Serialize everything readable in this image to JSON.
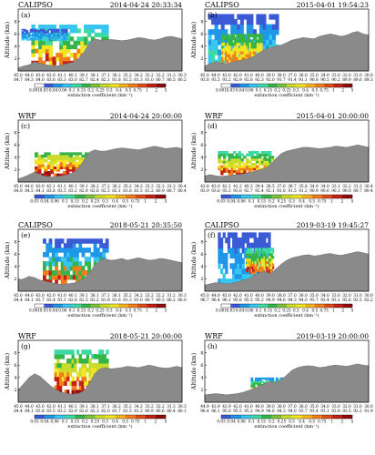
{
  "figure": {
    "y_axis_label": "Altitude (km)",
    "y_ticks": [
      "2",
      "4",
      "6",
      "8"
    ],
    "colorbar_label": "extinction coefficient (km⁻¹)",
    "colorbar_colors": [
      "#ffffff",
      "#3b5bd6",
      "#1f97e8",
      "#37c6f0",
      "#3fd9a5",
      "#35b44a",
      "#7fc33a",
      "#c9dc2e",
      "#f2e521",
      "#f6b51c",
      "#f07f1a",
      "#e04c17",
      "#c32114",
      "#8f0d0d"
    ]
  },
  "panels": [
    {
      "id": "a",
      "letter": "(a)",
      "source": "CALIPSO",
      "time": "2014-04-24 20:33:34",
      "colorbar_ticks": [
        "0.001",
        "0.03",
        "0.04",
        "0.06",
        "0.1",
        "0.15",
        "0.2",
        "0.25",
        "0.3",
        "0.4",
        "0.5",
        "0.75",
        "1",
        "2",
        "5"
      ],
      "lat_row": [
        "45.0",
        "44.0",
        "43.0",
        "42.0",
        "41.1",
        "40.1",
        "39.1",
        "38.1",
        "37.1",
        "36.2",
        "35.2",
        "34.2",
        "33.2",
        "32.2",
        "31.3",
        "30.3"
      ],
      "lon_row": [
        "84.7",
        "84.3",
        "84.0",
        "83.6",
        "83.3",
        "83.0",
        "82.7",
        "82.4",
        "82.1",
        "81.8",
        "81.5",
        "81.3",
        "81.0",
        "80.7",
        "80.5",
        "80.2"
      ],
      "chart_data": {
        "type": "heatmap",
        "xlabel": "",
        "ylabel": "Altitude (km)",
        "ylim": [
          0,
          10
        ],
        "terrain_km": [
          0.5,
          0.8,
          1.0,
          1.5,
          1.2,
          1.0,
          0.9,
          0.8,
          1.0,
          1.2,
          1.4,
          2.0,
          3.0,
          4.5,
          5.2,
          5.0,
          5.0,
          5.1,
          5.0,
          4.9,
          5.0,
          5.2,
          5.4,
          5.3,
          5.1,
          5.0,
          5.2,
          5.5,
          5.6,
          5.4,
          5.2
        ]
      }
    },
    {
      "id": "b",
      "letter": "(b)",
      "source": "CALIPSO",
      "time": "2015-04-01 19:54:23",
      "colorbar_ticks": [
        "0.001",
        "0.03",
        "0.04",
        "0.06",
        "0.1",
        "0.15",
        "0.2",
        "0.25",
        "0.3",
        "0.4",
        "0.5",
        "0.75",
        "1",
        "2",
        "5"
      ],
      "lat_row": [
        "45.0",
        "44.0",
        "43.0",
        "42.0",
        "41.0",
        "40.0",
        "39.0",
        "38.0",
        "37.0",
        "36.0",
        "35.0",
        "34.0",
        "33.0",
        "32.0",
        "31.0",
        "30.0"
      ],
      "lon_row": [
        "93.8",
        "93.5",
        "93.2",
        "92.9",
        "92.6",
        "92.3",
        "92.0",
        "91.7",
        "91.4",
        "91.1",
        "90.8",
        "90.5",
        "90.2",
        "89.9",
        "89.6",
        "89.3"
      ],
      "chart_data": {
        "type": "heatmap",
        "xlabel": "",
        "ylabel": "Altitude (km)",
        "ylim": [
          0,
          10
        ],
        "terrain_km": [
          0.8,
          1.2,
          1.5,
          1.3,
          1.2,
          1.4,
          1.6,
          1.8,
          2.0,
          2.4,
          3.0,
          3.5,
          3.8,
          4.0,
          4.2,
          4.6,
          5.0,
          5.2,
          5.4,
          5.3,
          5.2,
          5.6,
          5.8,
          6.0,
          5.8,
          5.6,
          5.8,
          6.2,
          6.4,
          6.0,
          5.8
        ]
      }
    },
    {
      "id": "c",
      "letter": "(c)",
      "source": "WRF",
      "time": "2014-04-24 20:00:00",
      "colorbar_ticks": [
        "0.03",
        "0.04",
        "0.06",
        "0.1",
        "0.15",
        "0.2",
        "0.25",
        "0.3",
        "0.4",
        "0.5",
        "0.75",
        "1",
        "2",
        "5"
      ],
      "lat_row": [
        "45.0",
        "44.0",
        "43.0",
        "42.1",
        "41.1",
        "40.1",
        "39.1",
        "38.2",
        "37.2",
        "36.2",
        "35.2",
        "34.3",
        "33.3",
        "32.3",
        "31.3",
        "30.4"
      ],
      "lon_row": [
        "84.8",
        "84.5",
        "84.1",
        "83.8",
        "83.5",
        "83.2",
        "82.9",
        "82.6",
        "82.3",
        "82.1",
        "81.8",
        "81.5",
        "81.2",
        "80.9",
        "80.7",
        "80.4"
      ],
      "chart_data": {
        "type": "heatmap",
        "xlabel": "",
        "ylabel": "Altitude (km)",
        "ylim": [
          0,
          10
        ],
        "terrain_km": [
          0.5,
          0.8,
          1.2,
          1.6,
          1.2,
          0.9,
          0.8,
          0.9,
          1.0,
          1.2,
          1.5,
          2.2,
          3.5,
          4.8,
          5.2,
          5.0,
          5.0,
          5.2,
          5.4,
          5.5,
          5.4,
          5.3,
          5.2,
          5.4,
          5.6,
          5.8,
          5.6,
          5.4,
          5.5,
          5.6,
          5.4
        ]
      }
    },
    {
      "id": "d",
      "letter": "(d)",
      "source": "WRF",
      "time": "2015-04-01 20:00:00",
      "colorbar_ticks": [
        "0.03",
        "0.04",
        "0.06",
        "0.1",
        "0.15",
        "0.2",
        "0.25",
        "0.3",
        "0.4",
        "0.5",
        "0.75",
        "1",
        "2",
        "5"
      ],
      "lat_row": [
        "43.8",
        "43.0",
        "42.1",
        "41.2",
        "40.3",
        "39.4",
        "38.5",
        "37.6",
        "36.7",
        "35.8",
        "34.9",
        "34.0",
        "33.1",
        "32.2",
        "31.3",
        "30.4"
      ],
      "lon_row": [
        "93.9",
        "93.6",
        "93.3",
        "93.0",
        "92.7",
        "92.4",
        "92.1",
        "91.8",
        "91.5",
        "91.2",
        "90.9",
        "90.6",
        "90.3",
        "90.0",
        "89.7",
        "89.4"
      ],
      "chart_data": {
        "type": "heatmap",
        "xlabel": "",
        "ylabel": "Altitude (km)",
        "ylim": [
          0,
          10
        ],
        "terrain_km": [
          1.0,
          1.2,
          1.0,
          0.9,
          1.0,
          1.1,
          1.2,
          1.3,
          1.5,
          1.7,
          2.0,
          2.2,
          2.8,
          3.8,
          4.6,
          5.0,
          5.2,
          5.4,
          5.6,
          5.6,
          5.5,
          5.4,
          5.5,
          5.6,
          5.8,
          5.7,
          5.6,
          5.8,
          6.0,
          5.8,
          5.6
        ]
      }
    },
    {
      "id": "e",
      "letter": "(e)",
      "source": "CALIPSO",
      "time": "2018-05-21 20:35:50",
      "colorbar_ticks": [
        "0.001",
        "0.03",
        "0.04",
        "0.06",
        "0.1",
        "0.15",
        "0.2",
        "0.25",
        "0.3",
        "0.4",
        "0.5",
        "0.75",
        "1",
        "2",
        "5"
      ],
      "lat_row": [
        "45.0",
        "44.0",
        "43.0",
        "42.0",
        "41.0",
        "40.1",
        "39.1",
        "38.1",
        "37.1",
        "36.1",
        "35.2",
        "34.2",
        "33.2",
        "32.2",
        "31.2",
        "30.3"
      ],
      "lon_row": [
        "84.4",
        "84.1",
        "83.7",
        "83.4",
        "83.1",
        "82.8",
        "82.5",
        "82.2",
        "81.9",
        "81.6",
        "81.3",
        "81.0",
        "80.7",
        "80.5",
        "80.2",
        "80.0"
      ],
      "chart_data": {
        "type": "heatmap",
        "xlabel": "",
        "ylabel": "Altitude (km)",
        "ylim": [
          0,
          10
        ],
        "terrain_km": [
          1.8,
          2.0,
          2.4,
          2.2,
          1.8,
          1.6,
          1.4,
          1.2,
          1.1,
          1.2,
          1.3,
          1.5,
          2.0,
          3.0,
          4.2,
          5.0,
          5.2,
          5.0,
          5.1,
          5.3,
          5.0,
          5.2,
          5.4,
          5.2,
          5.0,
          5.1,
          5.3,
          5.2,
          5.0,
          4.8,
          4.6
        ]
      }
    },
    {
      "id": "f",
      "letter": "(f)",
      "source": "CALIPSO",
      "time": "2019-03-19 19:45:27",
      "colorbar_ticks": [
        "0.001",
        "0.03",
        "0.04",
        "0.06",
        "0.1",
        "0.15",
        "0.2",
        "0.25",
        "0.3",
        "0.4",
        "0.5",
        "0.75",
        "1",
        "2",
        "5"
      ],
      "lat_row": [
        "45.0",
        "44.0",
        "43.0",
        "42.0",
        "41.0",
        "40.0",
        "39.0",
        "38.0",
        "37.0",
        "36.0",
        "35.0",
        "34.0",
        "33.0",
        "32.0",
        "31.0",
        "30.0"
      ],
      "lon_row": [
        "96.7",
        "96.4",
        "96.1",
        "95.8",
        "95.5",
        "95.2",
        "94.9",
        "94.6",
        "94.3",
        "94.0",
        "93.7",
        "93.4",
        "93.1",
        "92.8",
        "92.5",
        "92.2"
      ],
      "chart_data": {
        "type": "heatmap",
        "xlabel": "",
        "ylabel": "Altitude (km)",
        "ylim": [
          0,
          10
        ],
        "terrain_km": [
          1.0,
          1.2,
          1.4,
          1.3,
          1.2,
          1.3,
          1.5,
          1.8,
          2.0,
          2.5,
          3.0,
          3.2,
          2.8,
          3.6,
          4.4,
          5.0,
          5.4,
          5.6,
          5.8,
          5.9,
          5.7,
          5.8,
          6.0,
          6.1,
          5.9,
          5.8,
          6.0,
          6.2,
          6.4,
          6.2,
          6.0
        ]
      }
    },
    {
      "id": "g",
      "letter": "(g)",
      "source": "WRF",
      "time": "2018-05-21 20:00:00",
      "colorbar_ticks": [
        "0.03",
        "0.04",
        "0.06",
        "0.1",
        "0.15",
        "0.2",
        "0.25",
        "0.3",
        "0.4",
        "0.5",
        "0.75",
        "1",
        "2",
        "5"
      ],
      "lat_row": [
        "45.0",
        "44.0",
        "43.0",
        "42.0",
        "41.1",
        "40.1",
        "39.1",
        "38.1",
        "37.1",
        "36.2",
        "35.2",
        "34.2",
        "33.2",
        "32.2",
        "31.3",
        "30.3"
      ],
      "lon_row": [
        "84.4",
        "84.1",
        "83.8",
        "83.5",
        "83.2",
        "82.9",
        "82.6",
        "82.3",
        "82.0",
        "81.7",
        "81.5",
        "81.2",
        "80.9",
        "80.6",
        "80.4",
        "80.1"
      ],
      "chart_data": {
        "type": "heatmap",
        "xlabel": "",
        "ylabel": "Altitude (km)",
        "ylim": [
          0,
          10
        ],
        "terrain_km": [
          2.0,
          3.0,
          4.0,
          4.6,
          4.2,
          3.4,
          2.6,
          2.0,
          1.6,
          1.4,
          1.3,
          1.4,
          1.8,
          3.0,
          4.6,
          5.4,
          5.6,
          5.4,
          5.5,
          5.6,
          5.8,
          5.7,
          5.6,
          5.8,
          6.0,
          5.8,
          5.6,
          5.5,
          5.6,
          5.8,
          5.6
        ]
      }
    },
    {
      "id": "h",
      "letter": "(h)",
      "source": "WRF",
      "time": "2019-03-19 20:00:00",
      "colorbar_ticks": [
        "0.03",
        "0.04",
        "0.06",
        "0.1",
        "0.15",
        "0.2",
        "0.25",
        "0.3",
        "0.4",
        "0.5",
        "0.75",
        "1",
        "2",
        "5"
      ],
      "lat_row": [
        "44.9",
        "43.9",
        "42.9",
        "42.0",
        "41.0",
        "40.0",
        "39.0",
        "38.0",
        "37.0",
        "36.0",
        "35.0",
        "34.0",
        "33.0",
        "32.0",
        "31.0",
        "30.0"
      ],
      "lon_row": [
        "96.4",
        "96.1",
        "95.8",
        "95.5",
        "95.2",
        "94.9",
        "94.6",
        "94.3",
        "94.0",
        "93.7",
        "93.4",
        "93.1",
        "92.8",
        "92.5",
        "92.2",
        "91.9"
      ],
      "chart_data": {
        "type": "heatmap",
        "xlabel": "",
        "ylabel": "Altitude (km)",
        "ylim": [
          0,
          10
        ],
        "terrain_km": [
          1.2,
          1.3,
          1.4,
          1.3,
          1.2,
          1.3,
          1.4,
          1.6,
          1.9,
          2.2,
          2.6,
          3.0,
          3.4,
          3.2,
          3.6,
          4.4,
          5.2,
          5.6,
          5.8,
          5.9,
          5.8,
          5.6,
          5.7,
          5.9,
          6.0,
          5.9,
          5.8,
          6.0,
          6.2,
          6.0,
          5.9
        ]
      }
    }
  ]
}
